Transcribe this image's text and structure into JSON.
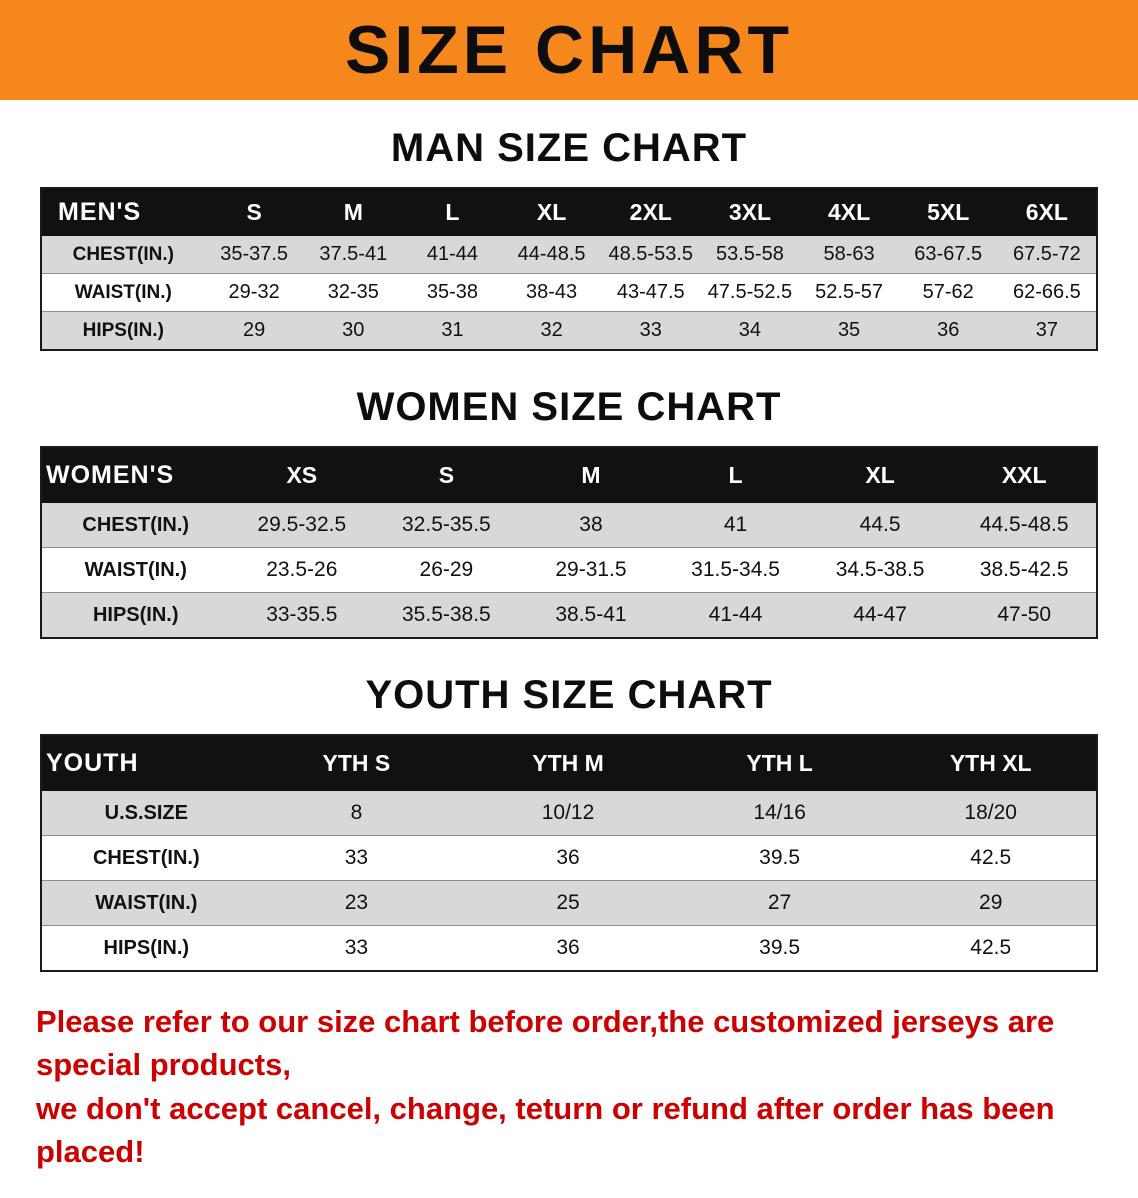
{
  "banner": {
    "title": "SIZE CHART"
  },
  "sections": {
    "men": {
      "title": "MAN SIZE CHART",
      "table": {
        "header": [
          "MEN'S",
          "S",
          "M",
          "L",
          "XL",
          "2XL",
          "3XL",
          "4XL",
          "5XL",
          "6XL"
        ],
        "rows": [
          {
            "label": "CHEST(IN.)",
            "values": [
              "35-37.5",
              "37.5-41",
              "41-44",
              "44-48.5",
              "48.5-53.5",
              "53.5-58",
              "58-63",
              "63-67.5",
              "67.5-72"
            ]
          },
          {
            "label": "WAIST(IN.)",
            "values": [
              "29-32",
              "32-35",
              "35-38",
              "38-43",
              "43-47.5",
              "47.5-52.5",
              "52.5-57",
              "57-62",
              "62-66.5"
            ]
          },
          {
            "label": "HIPS(IN.)",
            "values": [
              "29",
              "30",
              "31",
              "32",
              "33",
              "34",
              "35",
              "36",
              "37"
            ]
          }
        ]
      }
    },
    "women": {
      "title": "WOMEN SIZE CHART",
      "table": {
        "header": [
          "WOMEN'S",
          "XS",
          "S",
          "M",
          "L",
          "XL",
          "XXL"
        ],
        "rows": [
          {
            "label": "CHEST(IN.)",
            "values": [
              "29.5-32.5",
              "32.5-35.5",
              "38",
              "41",
              "44.5",
              "44.5-48.5"
            ]
          },
          {
            "label": "WAIST(IN.)",
            "values": [
              "23.5-26",
              "26-29",
              "29-31.5",
              "31.5-34.5",
              "34.5-38.5",
              "38.5-42.5"
            ]
          },
          {
            "label": "HIPS(IN.)",
            "values": [
              "33-35.5",
              "35.5-38.5",
              "38.5-41",
              "41-44",
              "44-47",
              "47-50"
            ]
          }
        ]
      }
    },
    "youth": {
      "title": "YOUTH SIZE CHART",
      "table": {
        "header": [
          "YOUTH",
          "YTH S",
          "YTH M",
          "YTH L",
          "YTH XL"
        ],
        "rows": [
          {
            "label": "U.S.SIZE",
            "values": [
              "8",
              "10/12",
              "14/16",
              "18/20"
            ]
          },
          {
            "label": "CHEST(IN.)",
            "values": [
              "33",
              "36",
              "39.5",
              "42.5"
            ]
          },
          {
            "label": "WAIST(IN.)",
            "values": [
              "23",
              "25",
              "27",
              "29"
            ]
          },
          {
            "label": "HIPS(IN.)",
            "values": [
              "33",
              "36",
              "39.5",
              "42.5"
            ]
          }
        ]
      }
    }
  },
  "footer": {
    "lines": [
      "Please refer to our size chart before order,the customized jerseys are special products,",
      "we don't accept cancel, change, teturn or refund after order has been placed!"
    ]
  },
  "colors": {
    "banner_bg": "#f6871d",
    "table_header_bg": "#111111",
    "row_stripe": "#d8d8d8",
    "footer_text": "#cc0000"
  }
}
